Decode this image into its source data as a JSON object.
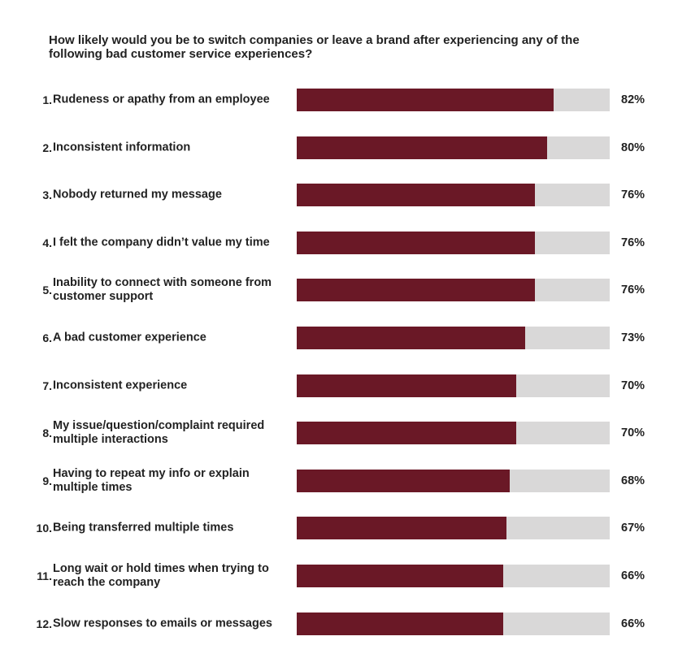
{
  "colors": {
    "bar_fill": "#6a1826",
    "bar_track": "#d9d8d8",
    "text": "#222222"
  },
  "chart_data": {
    "type": "bar",
    "orientation": "horizontal",
    "title": "How likely would you be to switch companies or leave a brand after experiencing any of the following bad customer service experiences?",
    "xlim": [
      0,
      100
    ],
    "grid": false,
    "legend": "none",
    "categories": [
      {
        "num": "1.",
        "label": "Rudeness or apathy from an employee",
        "value": 82,
        "value_label": "82%"
      },
      {
        "num": "2.",
        "label": "Inconsistent information",
        "value": 80,
        "value_label": "80%"
      },
      {
        "num": "3.",
        "label": "Nobody returned my message",
        "value": 76,
        "value_label": "76%"
      },
      {
        "num": "4.",
        "label": "I felt the company didn’t value my time",
        "value": 76,
        "value_label": "76%"
      },
      {
        "num": "5.",
        "label": "Inability to connect with someone from customer support",
        "value": 76,
        "value_label": "76%"
      },
      {
        "num": "6.",
        "label": "A bad customer experience",
        "value": 73,
        "value_label": "73%"
      },
      {
        "num": "7.",
        "label": "Inconsistent experience",
        "value": 70,
        "value_label": "70%"
      },
      {
        "num": "8.",
        "label": "My issue/question/complaint required multiple interactions",
        "value": 70,
        "value_label": "70%"
      },
      {
        "num": "9.",
        "label": "Having to repeat my info or explain multiple times",
        "value": 68,
        "value_label": "68%"
      },
      {
        "num": "10.",
        "label": "Being transferred multiple times",
        "value": 67,
        "value_label": "67%"
      },
      {
        "num": "11.",
        "label": "Long wait or hold times when trying to reach the company",
        "value": 66,
        "value_label": "66%"
      },
      {
        "num": "12.",
        "label": "Slow responses to emails or messages",
        "value": 66,
        "value_label": "66%"
      }
    ]
  }
}
